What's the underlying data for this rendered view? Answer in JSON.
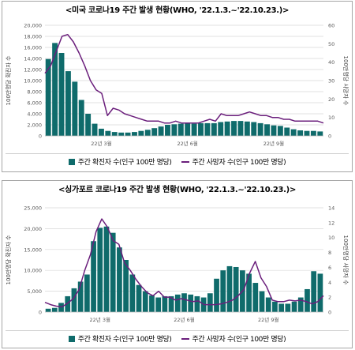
{
  "colors": {
    "bar": "#0f6b6b",
    "line": "#6b1f7c",
    "grid": "#d9d9d9",
    "axis_text": "#595959"
  },
  "chart_data": [
    {
      "type": "bar",
      "title": "<미국 코로나19 주간 발생 현황(WHO, '22.1.3.~'22.10.23.)>",
      "ylabel": "100만명당 확진자 수",
      "y2label": "100만명당 사망자 수",
      "yticks": [
        "0",
        "2,000",
        "4,000",
        "6,000",
        "8,000",
        "10,000",
        "12,000",
        "14,000",
        "16,000",
        "18,000",
        "20,000"
      ],
      "y2ticks": [
        "0",
        "10",
        "20",
        "30",
        "40",
        "50",
        "60"
      ],
      "ylim": [
        0,
        20000
      ],
      "y2lim": [
        0,
        60
      ],
      "xticklabels": [
        {
          "label": "22년 3월",
          "index": 8
        },
        {
          "label": "22년 6월",
          "index": 21
        },
        {
          "label": "22년 9월",
          "index": 34
        }
      ],
      "legend": [
        "주간 확진자 수(인구 100만 명당)",
        "주간 사망자 수(인구 100만 명당)"
      ],
      "series": [
        {
          "name": "주간 확진자 수(인구 100만 명당)",
          "type": "bar",
          "axis": "left",
          "values": [
            13900,
            16800,
            15000,
            11700,
            9800,
            6500,
            4000,
            2200,
            1300,
            900,
            700,
            600,
            600,
            700,
            900,
            1100,
            1400,
            1700,
            2000,
            2100,
            2200,
            2300,
            2200,
            2300,
            2300,
            2300,
            2500,
            2600,
            2700,
            2700,
            2600,
            2500,
            2300,
            2100,
            1900,
            1800,
            1500,
            1200,
            1000,
            900,
            900,
            800
          ]
        },
        {
          "name": "주간 사망자 수(인구 100만 명당)",
          "type": "line",
          "axis": "right",
          "values": [
            34,
            38,
            46,
            54,
            55,
            51,
            45,
            38,
            30,
            25,
            23,
            11,
            15,
            14,
            12,
            11,
            10,
            9,
            8,
            8,
            8,
            7,
            7,
            8,
            7,
            7,
            7,
            7,
            8,
            9,
            8,
            12,
            11,
            11,
            11,
            12,
            13,
            12,
            11,
            11,
            10,
            10,
            9,
            9,
            8,
            8,
            8,
            8,
            8,
            7
          ]
        }
      ]
    },
    {
      "type": "bar",
      "title": "<싱가포르 코로나19 주간 발생 현황(WHO, '22.1.3.~'22.10.23.)>",
      "ylabel": "100만명당 확진자 수",
      "y2label": "100만명당 사망자 수",
      "yticks": [
        "0",
        "5,000",
        "10,000",
        "15,000",
        "20,000",
        "25,000"
      ],
      "y2ticks": [
        "0",
        "2",
        "4",
        "6",
        "8",
        "10",
        "12",
        "14"
      ],
      "ylim": [
        0,
        25000
      ],
      "y2lim": [
        0,
        14
      ],
      "xticklabels": [
        {
          "label": "22년 3월",
          "index": 8
        },
        {
          "label": "22년 6월",
          "index": 21
        },
        {
          "label": "22년 9월",
          "index": 34
        }
      ],
      "legend": [
        "주간 확진자 수(인구 100만 명당)",
        "주간 사망자 수(인구 100만 명당)"
      ],
      "series": [
        {
          "name": "주간 확진자 수(인구 100만 명당)",
          "type": "bar",
          "axis": "left",
          "values": [
            800,
            1000,
            2200,
            3800,
            5700,
            7300,
            9000,
            17000,
            20200,
            20500,
            19000,
            15500,
            12500,
            9000,
            6500,
            5000,
            4000,
            3500,
            3800,
            3800,
            4200,
            4500,
            4200,
            3800,
            3500,
            4500,
            8000,
            10000,
            11000,
            10800,
            10000,
            9200,
            7000,
            5000,
            3500,
            2500,
            2000,
            2000,
            2500,
            3500,
            5500,
            9800,
            9200
          ]
        },
        {
          "name": "주간 사망자 수(인구 100만 명당)",
          "type": "line",
          "axis": "right",
          "values": [
            1.3,
            1.0,
            0.8,
            0.7,
            1.2,
            1.8,
            3.0,
            5.6,
            7.7,
            10.8,
            12.5,
            11.4,
            9.6,
            9.1,
            6.6,
            5.6,
            4.4,
            3.4,
            2.6,
            2.2,
            2.8,
            2.0,
            2.0,
            1.6,
            1.8,
            1.6,
            1.4,
            1.5,
            1.0,
            1.0,
            1.0,
            1.1,
            1.3,
            1.6,
            2.2,
            3.0,
            5.2,
            6.8,
            4.6,
            3.4,
            1.6,
            1.4,
            1.4,
            1.6,
            1.5,
            1.6,
            1.4,
            1.1,
            1.4,
            2.2
          ]
        }
      ]
    }
  ]
}
